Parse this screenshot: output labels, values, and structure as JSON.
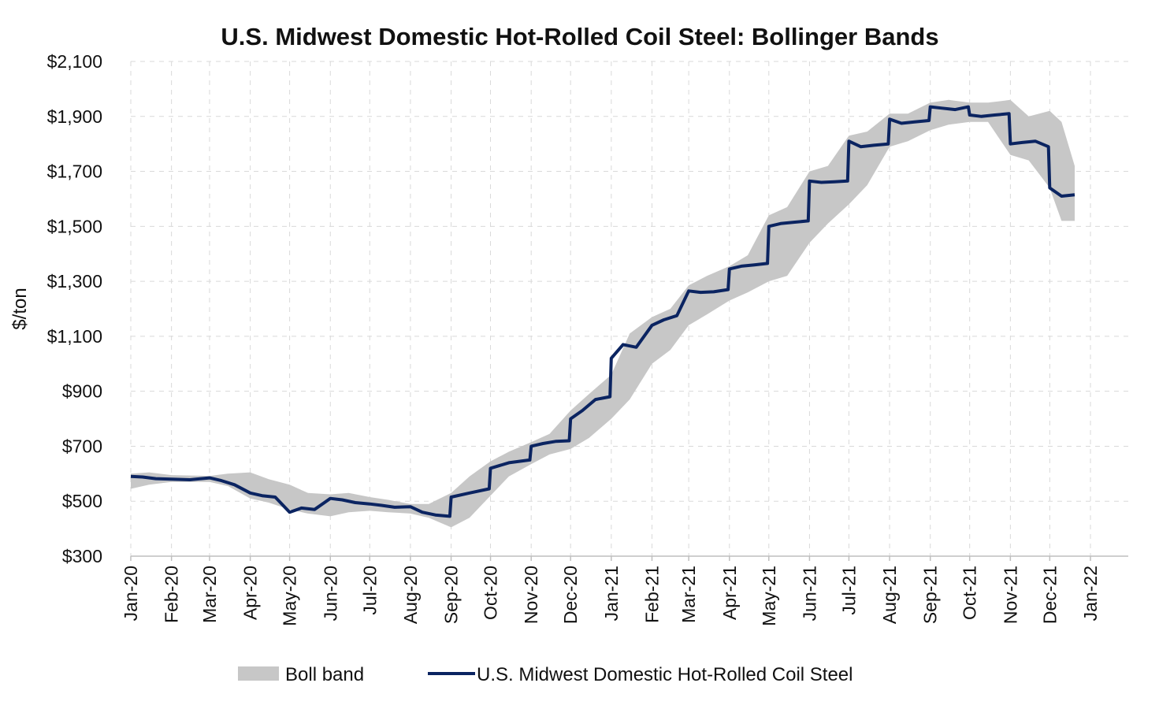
{
  "chart_data": {
    "type": "line",
    "title": "U.S. Midwest Domestic Hot-Rolled Coil Steel: Bollinger Bands",
    "xlabel": "",
    "ylabel": "$/ton",
    "ylim": [
      300,
      2100
    ],
    "yticks": [
      "$300",
      "$500",
      "$700",
      "$900",
      "$1,100",
      "$1,300",
      "$1,500",
      "$1,700",
      "$1,900",
      "$2,100"
    ],
    "xticks": [
      "Jan-20",
      "Feb-20",
      "Mar-20",
      "Apr-20",
      "May-20",
      "Jun-20",
      "Jul-20",
      "Aug-20",
      "Sep-20",
      "Oct-20",
      "Nov-20",
      "Dec-20",
      "Jan-21",
      "Feb-21",
      "Mar-21",
      "Apr-21",
      "May-21",
      "Jun-21",
      "Jul-21",
      "Aug-21",
      "Sep-21",
      "Oct-21",
      "Nov-21",
      "Dec-21",
      "Jan-22"
    ],
    "grid": true,
    "legend_position": "bottom",
    "series": [
      {
        "name": "U.S. Midwest Domestic Hot-Rolled Coil Steel",
        "color": "#0b2461",
        "x": [
          "2020-01-01",
          "2020-01-10",
          "2020-01-20",
          "2020-02-01",
          "2020-02-15",
          "2020-03-01",
          "2020-03-10",
          "2020-03-20",
          "2020-04-01",
          "2020-04-10",
          "2020-04-20",
          "2020-05-01",
          "2020-05-10",
          "2020-05-20",
          "2020-06-01",
          "2020-06-10",
          "2020-06-20",
          "2020-07-01",
          "2020-07-10",
          "2020-07-20",
          "2020-08-01",
          "2020-08-10",
          "2020-08-20",
          "2020-08-31",
          "2020-09-01",
          "2020-09-15",
          "2020-09-30",
          "2020-10-01",
          "2020-10-15",
          "2020-10-31",
          "2020-11-01",
          "2020-11-10",
          "2020-11-20",
          "2020-11-30",
          "2020-12-01",
          "2020-12-10",
          "2020-12-20",
          "2020-12-31",
          "2021-01-01",
          "2021-01-10",
          "2021-01-20",
          "2021-02-01",
          "2021-02-10",
          "2021-02-20",
          "2021-03-01",
          "2021-03-10",
          "2021-03-20",
          "2021-03-31",
          "2021-04-01",
          "2021-04-10",
          "2021-04-20",
          "2021-04-30",
          "2021-05-01",
          "2021-05-10",
          "2021-05-20",
          "2021-05-31",
          "2021-06-01",
          "2021-06-10",
          "2021-06-20",
          "2021-06-30",
          "2021-07-01",
          "2021-07-10",
          "2021-07-20",
          "2021-07-31",
          "2021-08-01",
          "2021-08-10",
          "2021-08-20",
          "2021-08-31",
          "2021-09-01",
          "2021-09-10",
          "2021-09-20",
          "2021-09-30",
          "2021-10-01",
          "2021-10-10",
          "2021-10-20",
          "2021-10-31",
          "2021-11-01",
          "2021-11-10",
          "2021-11-20",
          "2021-11-30",
          "2021-12-01",
          "2021-12-10",
          "2021-12-20"
        ],
        "values": [
          590,
          588,
          582,
          580,
          578,
          585,
          575,
          560,
          530,
          520,
          515,
          460,
          475,
          470,
          510,
          505,
          495,
          490,
          485,
          478,
          480,
          460,
          450,
          445,
          515,
          530,
          545,
          620,
          640,
          650,
          700,
          710,
          718,
          720,
          800,
          830,
          870,
          880,
          1020,
          1070,
          1060,
          1140,
          1160,
          1175,
          1265,
          1260,
          1262,
          1270,
          1345,
          1355,
          1360,
          1365,
          1500,
          1510,
          1515,
          1520,
          1665,
          1660,
          1662,
          1665,
          1810,
          1790,
          1795,
          1800,
          1890,
          1875,
          1880,
          1885,
          1935,
          1930,
          1925,
          1935,
          1905,
          1900,
          1905,
          1910,
          1800,
          1805,
          1810,
          1790,
          1640,
          1610,
          1615
        ]
      }
    ],
    "band": {
      "name": "Boll band",
      "color": "#c7c7c7",
      "x": [
        "2020-01-01",
        "2020-01-15",
        "2020-02-01",
        "2020-03-01",
        "2020-03-15",
        "2020-04-01",
        "2020-04-15",
        "2020-05-01",
        "2020-05-15",
        "2020-06-01",
        "2020-06-15",
        "2020-07-01",
        "2020-07-15",
        "2020-08-01",
        "2020-08-15",
        "2020-09-01",
        "2020-09-15",
        "2020-10-01",
        "2020-10-15",
        "2020-11-01",
        "2020-11-15",
        "2020-12-01",
        "2020-12-15",
        "2021-01-01",
        "2021-01-15",
        "2021-02-01",
        "2021-02-15",
        "2021-03-01",
        "2021-03-15",
        "2021-04-01",
        "2021-04-15",
        "2021-05-01",
        "2021-05-15",
        "2021-06-01",
        "2021-06-15",
        "2021-07-01",
        "2021-07-15",
        "2021-08-01",
        "2021-08-15",
        "2021-09-01",
        "2021-09-15",
        "2021-10-01",
        "2021-10-15",
        "2021-11-01",
        "2021-11-15",
        "2021-12-01",
        "2021-12-10",
        "2021-12-20"
      ],
      "upper": [
        600,
        605,
        595,
        592,
        600,
        605,
        580,
        560,
        530,
        525,
        530,
        515,
        505,
        490,
        490,
        530,
        590,
        645,
        680,
        715,
        745,
        830,
        890,
        960,
        1110,
        1170,
        1200,
        1285,
        1320,
        1355,
        1395,
        1540,
        1570,
        1700,
        1720,
        1830,
        1845,
        1910,
        1910,
        1950,
        1960,
        1950,
        1950,
        1960,
        1900,
        1920,
        1880,
        1720
      ],
      "lower": [
        545,
        560,
        570,
        570,
        555,
        510,
        495,
        470,
        455,
        445,
        460,
        465,
        460,
        455,
        440,
        405,
        440,
        520,
        590,
        635,
        670,
        690,
        730,
        800,
        870,
        1000,
        1050,
        1140,
        1180,
        1230,
        1260,
        1300,
        1320,
        1440,
        1510,
        1580,
        1650,
        1790,
        1810,
        1850,
        1870,
        1880,
        1880,
        1760,
        1740,
        1640,
        1520,
        1520
      ]
    }
  }
}
